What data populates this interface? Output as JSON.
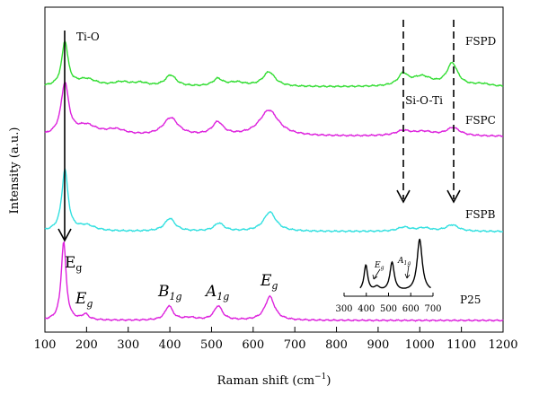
{
  "chart_data": {
    "type": "line",
    "xlabel": "Raman shift (cm",
    "xlabel_sup": "−1",
    "xlabel_close": ")",
    "ylabel": "Intensity (a.u.)",
    "xlim": [
      100,
      1200
    ],
    "xticks": [
      100,
      200,
      300,
      400,
      500,
      600,
      700,
      800,
      900,
      1000,
      1100,
      1200
    ],
    "yticks_shown": false,
    "grid": false,
    "series": [
      {
        "name": "FSPD",
        "color": "#33dd33",
        "baseline": 0.11,
        "peaks": [
          {
            "x": 148,
            "h": 0.55,
            "w": 9
          },
          {
            "x": 200,
            "h": 0.09,
            "w": 30
          },
          {
            "x": 285,
            "h": 0.05,
            "w": 25
          },
          {
            "x": 330,
            "h": 0.04,
            "w": 20
          },
          {
            "x": 402,
            "h": 0.14,
            "w": 16
          },
          {
            "x": 515,
            "h": 0.09,
            "w": 14
          },
          {
            "x": 560,
            "h": 0.05,
            "w": 25
          },
          {
            "x": 638,
            "h": 0.18,
            "w": 18
          },
          {
            "x": 960,
            "h": 0.14,
            "w": 14
          },
          {
            "x": 1005,
            "h": 0.12,
            "w": 30
          },
          {
            "x": 1078,
            "h": 0.28,
            "w": 16
          },
          {
            "x": 1150,
            "h": 0.03,
            "w": 25
          }
        ]
      },
      {
        "name": "FSPC",
        "color": "#dd22dd",
        "baseline": 0.06,
        "peaks": [
          {
            "x": 148,
            "h": 0.64,
            "w": 11
          },
          {
            "x": 200,
            "h": 0.12,
            "w": 30
          },
          {
            "x": 270,
            "h": 0.07,
            "w": 30
          },
          {
            "x": 402,
            "h": 0.22,
            "w": 22
          },
          {
            "x": 515,
            "h": 0.16,
            "w": 16
          },
          {
            "x": 638,
            "h": 0.32,
            "w": 28
          },
          {
            "x": 960,
            "h": 0.06,
            "w": 22
          },
          {
            "x": 1010,
            "h": 0.05,
            "w": 30
          },
          {
            "x": 1080,
            "h": 0.1,
            "w": 20
          }
        ]
      },
      {
        "name": "FSPB",
        "color": "#33e0e0",
        "baseline": 0.04,
        "peaks": [
          {
            "x": 148,
            "h": 0.76,
            "w": 9
          },
          {
            "x": 200,
            "h": 0.07,
            "w": 25
          },
          {
            "x": 400,
            "h": 0.16,
            "w": 15
          },
          {
            "x": 518,
            "h": 0.1,
            "w": 14
          },
          {
            "x": 640,
            "h": 0.24,
            "w": 18
          },
          {
            "x": 962,
            "h": 0.05,
            "w": 18
          },
          {
            "x": 1010,
            "h": 0.04,
            "w": 20
          },
          {
            "x": 1078,
            "h": 0.08,
            "w": 18
          }
        ]
      },
      {
        "name": "P25",
        "color": "#dd22dd",
        "baseline": 0.02,
        "peaks": [
          {
            "x": 145,
            "h": 1.0,
            "w": 7
          },
          {
            "x": 197,
            "h": 0.07,
            "w": 10
          },
          {
            "x": 398,
            "h": 0.18,
            "w": 11
          },
          {
            "x": 448,
            "h": 0.03,
            "w": 20
          },
          {
            "x": 516,
            "h": 0.18,
            "w": 12
          },
          {
            "x": 640,
            "h": 0.3,
            "w": 14
          }
        ]
      }
    ],
    "annotations": {
      "ti_o": "Ti-O",
      "si_o_ti": "Si-O-Ti",
      "eg_main": "E",
      "eg_main_sub": "g",
      "eg": "E",
      "eg_sub": "g",
      "b1g": "B",
      "b1g_sub": "1g",
      "a1g": "A",
      "a1g_sub": "1g",
      "eg2": "E",
      "eg2_sub": "g"
    },
    "inset": {
      "xticks": [
        300,
        400,
        500,
        600,
        700
      ],
      "xlim": [
        300,
        700
      ],
      "peaks": [
        {
          "x": 398,
          "h": 0.5,
          "w": 10
        },
        {
          "x": 448,
          "h": 0.08,
          "w": 15
        },
        {
          "x": 516,
          "h": 0.55,
          "w": 12
        },
        {
          "x": 640,
          "h": 1.0,
          "w": 14
        }
      ],
      "eg": "E",
      "eg_sub": "g",
      "a1g": "A",
      "a1g_sub": "1g"
    }
  }
}
